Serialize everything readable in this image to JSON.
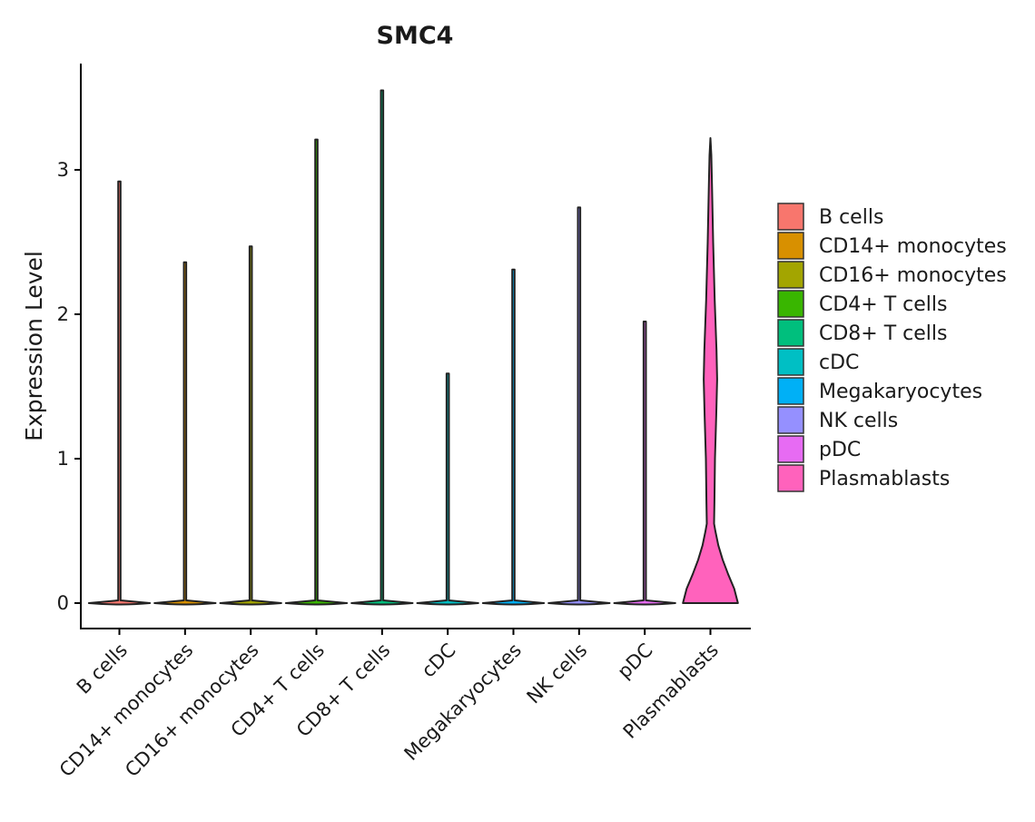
{
  "chart_data": {
    "type": "violin",
    "title": "SMC4",
    "xlabel": "",
    "ylabel": "Expression Level",
    "ylim": [
      -0.18,
      3.72
    ],
    "yticks": [
      0,
      1,
      2,
      3
    ],
    "grid": false,
    "legend_position": "right",
    "categories": [
      "B cells",
      "CD14+ monocytes",
      "CD16+ monocytes",
      "CD4+ T cells",
      "CD8+ T cells",
      "cDC",
      "Megakaryocytes",
      "NK cells",
      "pDC",
      "Plasmablasts"
    ],
    "series": [
      {
        "name": "B cells",
        "color": "#F8766D",
        "max": 2.92,
        "shape": "spike"
      },
      {
        "name": "CD14+ monocytes",
        "color": "#D89000",
        "max": 2.36,
        "shape": "spike"
      },
      {
        "name": "CD16+ monocytes",
        "color": "#A3A500",
        "max": 2.47,
        "shape": "spike"
      },
      {
        "name": "CD4+ T cells",
        "color": "#39B600",
        "max": 3.21,
        "shape": "spike"
      },
      {
        "name": "CD8+ T cells",
        "color": "#00BF7D",
        "max": 3.55,
        "shape": "spike"
      },
      {
        "name": "cDC",
        "color": "#00BFC4",
        "max": 1.59,
        "shape": "spike"
      },
      {
        "name": "Megakaryocytes",
        "color": "#00B0F6",
        "max": 2.31,
        "shape": "spike"
      },
      {
        "name": "NK cells",
        "color": "#9590FF",
        "max": 2.74,
        "shape": "spike"
      },
      {
        "name": "pDC",
        "color": "#E76BF3",
        "max": 1.95,
        "shape": "spike"
      },
      {
        "name": "Plasmablasts",
        "color": "#FF62BC",
        "max": 3.22,
        "shape": "full",
        "density": [
          [
            0.0,
            0.9
          ],
          [
            0.1,
            0.78
          ],
          [
            0.2,
            0.58
          ],
          [
            0.3,
            0.4
          ],
          [
            0.4,
            0.26
          ],
          [
            0.5,
            0.16
          ],
          [
            0.55,
            0.12
          ],
          [
            0.7,
            0.13
          ],
          [
            1.0,
            0.15
          ],
          [
            1.3,
            0.19
          ],
          [
            1.55,
            0.22
          ],
          [
            1.75,
            0.2
          ],
          [
            2.1,
            0.14
          ],
          [
            2.5,
            0.09
          ],
          [
            2.9,
            0.05
          ],
          [
            3.1,
            0.03
          ],
          [
            3.22,
            0.0
          ]
        ]
      }
    ]
  }
}
